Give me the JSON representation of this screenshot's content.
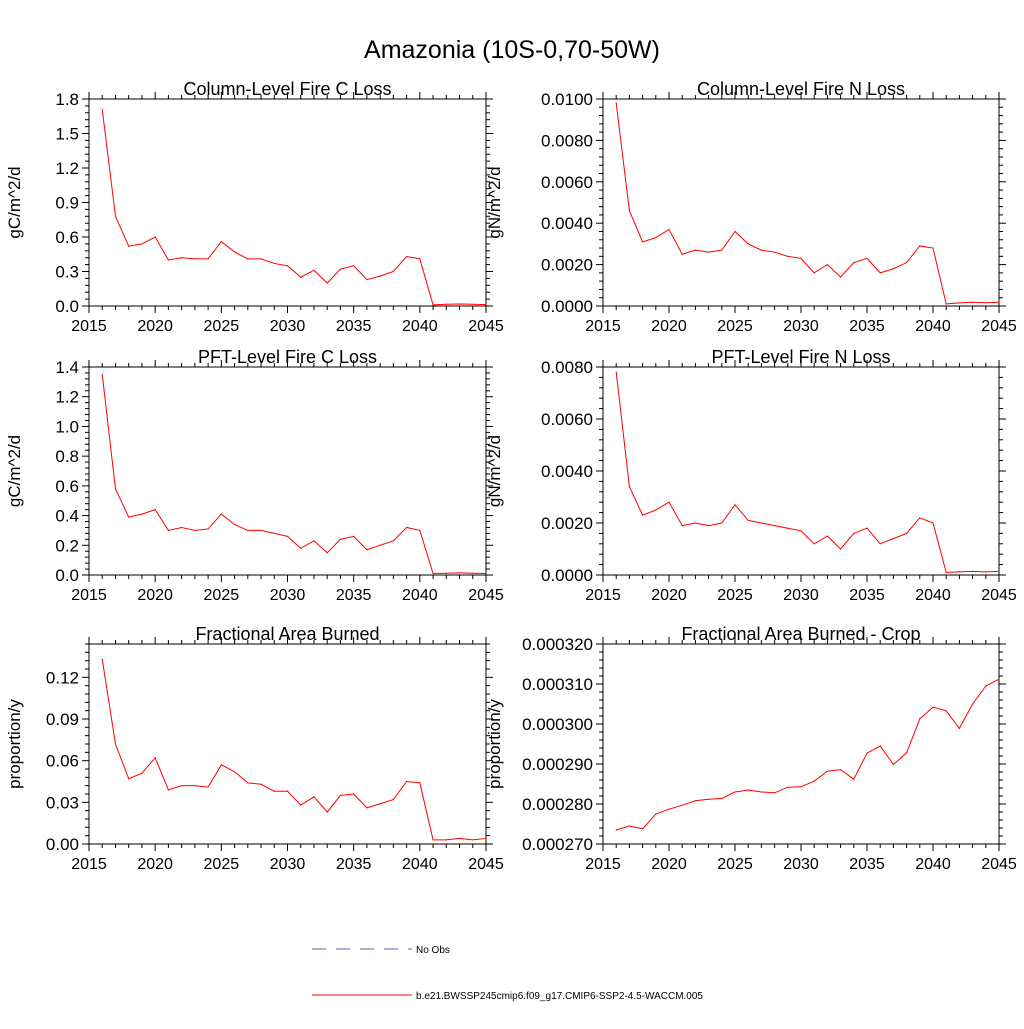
{
  "figure": {
    "title": "Amazonia (10S-0,70-50W)"
  },
  "legend": {
    "items": [
      {
        "label": "No Obs",
        "color": "#6060c0",
        "dash": true
      },
      {
        "label": "b.e21.BWSSP245cmip6.f09_g17.CMIP6-SSP2-4.5-WACCM.005",
        "color": "#ff0000",
        "dash": false
      }
    ]
  },
  "colors": {
    "series": "#ff0000",
    "axis": "#000000"
  },
  "chart_data": [
    {
      "type": "line",
      "title": "Column-Level Fire C Loss",
      "xlabel": "",
      "ylabel": "gC/m^2/d",
      "xlim": [
        2015,
        2045
      ],
      "ylim": [
        0,
        1.8
      ],
      "xticks": [
        2015,
        2020,
        2025,
        2030,
        2035,
        2040,
        2045
      ],
      "xtick_labels": [
        "2015",
        "2020",
        "2025",
        "2030",
        "2035",
        "2040",
        "2045"
      ],
      "yticks": [
        0,
        0.3,
        0.6,
        0.9,
        1.2,
        1.5,
        1.8
      ],
      "ytick_labels": [
        "0.0",
        "0.3",
        "0.6",
        "0.9",
        "1.2",
        "1.5",
        "1.8"
      ],
      "x": [
        2016,
        2017,
        2018,
        2019,
        2020,
        2021,
        2022,
        2023,
        2024,
        2025,
        2026,
        2027,
        2028,
        2029,
        2030,
        2031,
        2032,
        2033,
        2034,
        2035,
        2036,
        2037,
        2038,
        2039,
        2040,
        2041,
        2042,
        2043,
        2044,
        2045
      ],
      "series": [
        {
          "name": "b.e21.BWSSP245cmip6.f09_g17.CMIP6-SSP2-4.5-WACCM.005",
          "values": [
            1.71,
            0.78,
            0.52,
            0.54,
            0.6,
            0.4,
            0.42,
            0.41,
            0.41,
            0.56,
            0.47,
            0.41,
            0.41,
            0.37,
            0.35,
            0.25,
            0.31,
            0.2,
            0.32,
            0.35,
            0.23,
            0.26,
            0.3,
            0.43,
            0.41,
            0.01,
            0.015,
            0.017,
            0.015,
            0.012
          ]
        }
      ]
    },
    {
      "type": "line",
      "title": "Column-Level Fire N Loss",
      "xlabel": "",
      "ylabel": "gN/m^2/d",
      "xlim": [
        2015,
        2045
      ],
      "ylim": [
        0,
        0.01
      ],
      "xticks": [
        2015,
        2020,
        2025,
        2030,
        2035,
        2040,
        2045
      ],
      "xtick_labels": [
        "2015",
        "2020",
        "2025",
        "2030",
        "2035",
        "2040",
        "2045"
      ],
      "yticks": [
        0,
        0.002,
        0.004,
        0.006,
        0.008,
        0.01
      ],
      "ytick_labels": [
        "0.0000",
        "0.0020",
        "0.0040",
        "0.0060",
        "0.0080",
        "0.0100"
      ],
      "x": [
        2016,
        2017,
        2018,
        2019,
        2020,
        2021,
        2022,
        2023,
        2024,
        2025,
        2026,
        2027,
        2028,
        2029,
        2030,
        2031,
        2032,
        2033,
        2034,
        2035,
        2036,
        2037,
        2038,
        2039,
        2040,
        2041,
        2042,
        2043,
        2044,
        2045
      ],
      "series": [
        {
          "name": "b.e21.BWSSP245cmip6.f09_g17.CMIP6-SSP2-4.5-WACCM.005",
          "values": [
            0.0098,
            0.0046,
            0.0031,
            0.0033,
            0.0037,
            0.0025,
            0.0027,
            0.0026,
            0.0027,
            0.0036,
            0.003,
            0.0027,
            0.0026,
            0.0024,
            0.0023,
            0.0016,
            0.002,
            0.0014,
            0.0021,
            0.0023,
            0.0016,
            0.0018,
            0.0021,
            0.0029,
            0.0028,
            0.0001,
            0.00015,
            0.00018,
            0.00016,
            0.00018
          ]
        }
      ]
    },
    {
      "type": "line",
      "title": "PFT-Level Fire C Loss",
      "xlabel": "",
      "ylabel": "gC/m^2/d",
      "xlim": [
        2015,
        2045
      ],
      "ylim": [
        0,
        1.4
      ],
      "xticks": [
        2015,
        2020,
        2025,
        2030,
        2035,
        2040,
        2045
      ],
      "xtick_labels": [
        "2015",
        "2020",
        "2025",
        "2030",
        "2035",
        "2040",
        "2045"
      ],
      "yticks": [
        0,
        0.2,
        0.4,
        0.6,
        0.8,
        1.0,
        1.2,
        1.4
      ],
      "ytick_labels": [
        "0.0",
        "0.2",
        "0.4",
        "0.6",
        "0.8",
        "1.0",
        "1.2",
        "1.4"
      ],
      "x": [
        2016,
        2017,
        2018,
        2019,
        2020,
        2021,
        2022,
        2023,
        2024,
        2025,
        2026,
        2027,
        2028,
        2029,
        2030,
        2031,
        2032,
        2033,
        2034,
        2035,
        2036,
        2037,
        2038,
        2039,
        2040,
        2041,
        2042,
        2043,
        2044,
        2045
      ],
      "series": [
        {
          "name": "b.e21.BWSSP245cmip6.f09_g17.CMIP6-SSP2-4.5-WACCM.005",
          "values": [
            1.35,
            0.58,
            0.39,
            0.41,
            0.44,
            0.3,
            0.32,
            0.3,
            0.31,
            0.41,
            0.34,
            0.3,
            0.3,
            0.28,
            0.26,
            0.18,
            0.23,
            0.15,
            0.24,
            0.26,
            0.17,
            0.2,
            0.23,
            0.32,
            0.3,
            0.01,
            0.012,
            0.014,
            0.012,
            0.01
          ]
        }
      ]
    },
    {
      "type": "line",
      "title": "PFT-Level Fire N Loss",
      "xlabel": "",
      "ylabel": "gN/m^2/d",
      "xlim": [
        2015,
        2045
      ],
      "ylim": [
        0,
        0.008
      ],
      "xticks": [
        2015,
        2020,
        2025,
        2030,
        2035,
        2040,
        2045
      ],
      "xtick_labels": [
        "2015",
        "2020",
        "2025",
        "2030",
        "2035",
        "2040",
        "2045"
      ],
      "yticks": [
        0,
        0.002,
        0.004,
        0.006,
        0.008
      ],
      "ytick_labels": [
        "0.0000",
        "0.0020",
        "0.0040",
        "0.0060",
        "0.0080"
      ],
      "x": [
        2016,
        2017,
        2018,
        2019,
        2020,
        2021,
        2022,
        2023,
        2024,
        2025,
        2026,
        2027,
        2028,
        2029,
        2030,
        2031,
        2032,
        2033,
        2034,
        2035,
        2036,
        2037,
        2038,
        2039,
        2040,
        2041,
        2042,
        2043,
        2044,
        2045
      ],
      "series": [
        {
          "name": "b.e21.BWSSP245cmip6.f09_g17.CMIP6-SSP2-4.5-WACCM.005",
          "values": [
            0.0078,
            0.0034,
            0.0023,
            0.0025,
            0.0028,
            0.0019,
            0.002,
            0.0019,
            0.002,
            0.0027,
            0.0021,
            0.002,
            0.0019,
            0.0018,
            0.0017,
            0.0012,
            0.0015,
            0.001,
            0.0016,
            0.0018,
            0.0012,
            0.0014,
            0.0016,
            0.0022,
            0.002,
            0.0001,
            0.00012,
            0.00014,
            0.00012,
            0.00014
          ]
        }
      ]
    },
    {
      "type": "line",
      "title": "Fractional Area Burned",
      "xlabel": "",
      "ylabel": "proportion/y",
      "xlim": [
        2015,
        2045
      ],
      "ylim": [
        0,
        0.144
      ],
      "xticks": [
        2015,
        2020,
        2025,
        2030,
        2035,
        2040,
        2045
      ],
      "xtick_labels": [
        "2015",
        "2020",
        "2025",
        "2030",
        "2035",
        "2040",
        "2045"
      ],
      "yticks": [
        0,
        0.03,
        0.06,
        0.09,
        0.12
      ],
      "ytick_labels": [
        "0.00",
        "0.03",
        "0.06",
        "0.09",
        "0.12"
      ],
      "x": [
        2016,
        2017,
        2018,
        2019,
        2020,
        2021,
        2022,
        2023,
        2024,
        2025,
        2026,
        2027,
        2028,
        2029,
        2030,
        2031,
        2032,
        2033,
        2034,
        2035,
        2036,
        2037,
        2038,
        2039,
        2040,
        2041,
        2042,
        2043,
        2044,
        2045
      ],
      "series": [
        {
          "name": "b.e21.BWSSP245cmip6.f09_g17.CMIP6-SSP2-4.5-WACCM.005",
          "values": [
            0.133,
            0.072,
            0.047,
            0.051,
            0.062,
            0.039,
            0.042,
            0.042,
            0.041,
            0.057,
            0.052,
            0.044,
            0.043,
            0.038,
            0.038,
            0.028,
            0.034,
            0.023,
            0.035,
            0.036,
            0.026,
            0.029,
            0.032,
            0.045,
            0.044,
            0.003,
            0.003,
            0.004,
            0.003,
            0.004
          ]
        }
      ]
    },
    {
      "type": "line",
      "title": "Fractional Area Burned - Crop",
      "xlabel": "",
      "ylabel": "proportion/y",
      "xlim": [
        2015,
        2045
      ],
      "ylim": [
        0.00027,
        0.00032
      ],
      "xticks": [
        2015,
        2020,
        2025,
        2030,
        2035,
        2040,
        2045
      ],
      "xtick_labels": [
        "2015",
        "2020",
        "2025",
        "2030",
        "2035",
        "2040",
        "2045"
      ],
      "yticks": [
        0.00027,
        0.00028,
        0.00029,
        0.0003,
        0.00031,
        0.00032
      ],
      "ytick_labels": [
        "0.000270",
        "0.000280",
        "0.000290",
        "0.000300",
        "0.000310",
        "0.000320"
      ],
      "x": [
        2016,
        2017,
        2018,
        2019,
        2020,
        2021,
        2022,
        2023,
        2024,
        2025,
        2026,
        2027,
        2028,
        2029,
        2030,
        2031,
        2032,
        2033,
        2034,
        2035,
        2036,
        2037,
        2038,
        2039,
        2040,
        2041,
        2042,
        2043,
        2044,
        2045
      ],
      "series": [
        {
          "name": "b.e21.BWSSP245cmip6.f09_g17.CMIP6-SSP2-4.5-WACCM.005",
          "values": [
            0.0002735,
            0.0002745,
            0.0002738,
            0.0002775,
            0.0002787,
            0.0002797,
            0.0002808,
            0.0002812,
            0.0002814,
            0.000283,
            0.0002835,
            0.000283,
            0.0002828,
            0.0002842,
            0.0002843,
            0.0002857,
            0.0002882,
            0.0002886,
            0.0002862,
            0.0002927,
            0.0002945,
            0.0002899,
            0.0002928,
            0.0003013,
            0.0003042,
            0.0003033,
            0.0002989,
            0.000305,
            0.0003095,
            0.0003112
          ]
        }
      ]
    }
  ]
}
